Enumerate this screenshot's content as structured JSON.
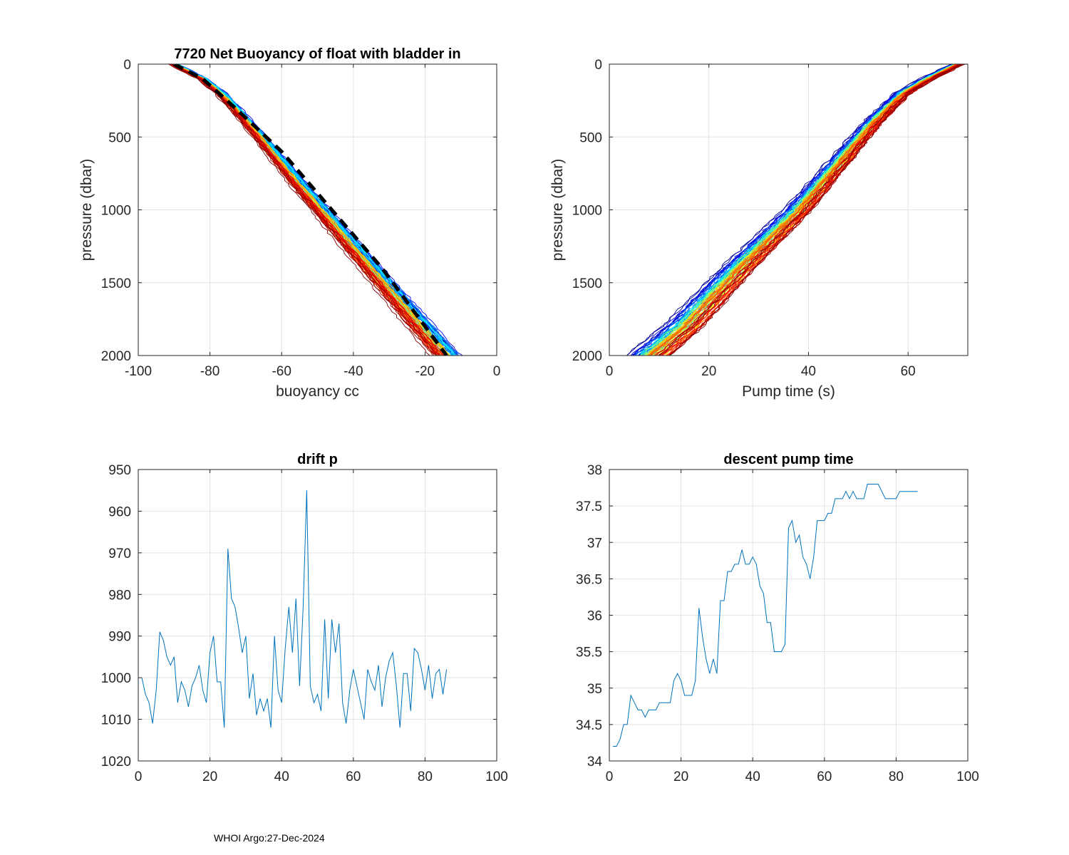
{
  "footer": "WHOI Argo:27-Dec-2024",
  "chart_data": [
    {
      "id": "buoyancy",
      "type": "line",
      "title": "7720 Net Buoyancy of float with bladder in",
      "xlabel": "buoyancy cc",
      "ylabel": "pressure (dbar)",
      "xlim": [
        -100,
        0
      ],
      "ylim": [
        0,
        2000
      ],
      "y_reversed": true,
      "grid": true,
      "xticks": [
        -100,
        -80,
        -60,
        -40,
        -20,
        0
      ],
      "yticks": [
        0,
        500,
        1000,
        1500,
        2000
      ],
      "xtick_labels": [
        "-100",
        "-80",
        "-60",
        "-40",
        "-20",
        "0"
      ],
      "ytick_labels": [
        "0",
        "500",
        "1000",
        "1500",
        "2000"
      ],
      "profile_count": 86,
      "colormap": "jet",
      "profile_template": {
        "p": [
          0,
          100,
          200,
          300,
          500,
          800,
          1200,
          1600,
          2000
        ],
        "x": [
          -90,
          -82,
          -77,
          -73,
          -66,
          -56,
          -42,
          -28,
          -14
        ]
      },
      "reference_line": {
        "name": "mean",
        "style": "dashed-black",
        "p": [
          0,
          100,
          300,
          600,
          1000,
          1400,
          1800,
          2000
        ],
        "x": [
          -90,
          -82,
          -73,
          -60,
          -46,
          -32,
          -20,
          -14
        ]
      }
    },
    {
      "id": "pump",
      "type": "line",
      "title": "",
      "xlabel": "Pump time (s)",
      "ylabel": "pressure (dbar)",
      "xlim": [
        0,
        72
      ],
      "ylim": [
        0,
        2000
      ],
      "y_reversed": true,
      "grid": true,
      "xticks": [
        0,
        20,
        40,
        60
      ],
      "yticks": [
        0,
        500,
        1000,
        1500,
        2000
      ],
      "xtick_labels": [
        "0",
        "20",
        "40",
        "60"
      ],
      "ytick_labels": [
        "0",
        "500",
        "1000",
        "1500",
        "2000"
      ],
      "profile_count": 86,
      "colormap": "jet",
      "profile_template": {
        "p": [
          0,
          100,
          200,
          400,
          800,
          1000,
          1400,
          1800,
          2000
        ],
        "x": [
          70,
          64,
          59,
          53,
          43,
          38,
          26,
          15,
          8
        ]
      }
    },
    {
      "id": "drift",
      "type": "line",
      "title": "drift p",
      "xlabel": "",
      "ylabel": "",
      "xlim": [
        0,
        100
      ],
      "ylim": [
        950,
        1020
      ],
      "y_reversed": true,
      "grid": true,
      "xticks": [
        0,
        20,
        40,
        60,
        80,
        100
      ],
      "yticks": [
        950,
        960,
        970,
        980,
        990,
        1000,
        1010,
        1020
      ],
      "xtick_labels": [
        "0",
        "20",
        "40",
        "60",
        "80",
        "100"
      ],
      "ytick_labels": [
        "950",
        "960",
        "970",
        "980",
        "990",
        "1000",
        "1010",
        "1020"
      ],
      "series": [
        {
          "name": "drift p",
          "x": [
            1,
            2,
            3,
            4,
            5,
            6,
            7,
            8,
            9,
            10,
            11,
            12,
            13,
            14,
            15,
            16,
            17,
            18,
            19,
            20,
            21,
            22,
            23,
            24,
            25,
            26,
            27,
            28,
            29,
            30,
            31,
            32,
            33,
            34,
            35,
            36,
            37,
            38,
            39,
            40,
            41,
            42,
            43,
            44,
            45,
            46,
            47,
            48,
            49,
            50,
            51,
            52,
            53,
            54,
            55,
            56,
            57,
            58,
            59,
            60,
            61,
            62,
            63,
            64,
            65,
            66,
            67,
            68,
            69,
            70,
            71,
            72,
            73,
            74,
            75,
            76,
            77,
            78,
            79,
            80,
            81,
            82,
            83,
            84,
            85,
            86
          ],
          "y": [
            1000,
            1004,
            1006,
            1011,
            1003,
            989,
            991,
            995,
            997,
            995,
            1006,
            1001,
            1003,
            1007,
            1002,
            1000,
            997,
            1003,
            1006,
            994,
            990,
            1001,
            1001,
            1012,
            969,
            981,
            983,
            988,
            994,
            990,
            1005,
            999,
            1009,
            1005,
            1008,
            1005,
            1012,
            990,
            1003,
            1006,
            993,
            983,
            994,
            981,
            1002,
            983,
            955,
            1002,
            1006,
            1004,
            1008,
            986,
            1005,
            986,
            994,
            987,
            1006,
            1011,
            1003,
            998,
            1002,
            1006,
            1010,
            998,
            1001,
            1003,
            997,
            1007,
            1000,
            996,
            994,
            1002,
            1012,
            999,
            999,
            1008,
            993,
            994,
            998,
            1003,
            997,
            1005,
            999,
            998,
            1004,
            998
          ]
        }
      ]
    },
    {
      "id": "descent",
      "type": "line",
      "title": "descent pump time",
      "xlabel": "",
      "ylabel": "",
      "xlim": [
        0,
        100
      ],
      "ylim": [
        34,
        38
      ],
      "y_reversed": false,
      "grid": true,
      "xticks": [
        0,
        20,
        40,
        60,
        80,
        100
      ],
      "yticks": [
        34,
        34.5,
        35,
        35.5,
        36,
        36.5,
        37,
        37.5,
        38
      ],
      "xtick_labels": [
        "0",
        "20",
        "40",
        "60",
        "80",
        "100"
      ],
      "ytick_labels": [
        "34",
        "34.5",
        "35",
        "35.5",
        "36",
        "36.5",
        "37",
        "37.5",
        "38"
      ],
      "series": [
        {
          "name": "descent pump time",
          "x": [
            1,
            2,
            3,
            4,
            5,
            6,
            7,
            8,
            9,
            10,
            11,
            12,
            13,
            14,
            15,
            16,
            17,
            18,
            19,
            20,
            21,
            22,
            23,
            24,
            25,
            26,
            27,
            28,
            29,
            30,
            31,
            32,
            33,
            34,
            35,
            36,
            37,
            38,
            39,
            40,
            41,
            42,
            43,
            44,
            45,
            46,
            47,
            48,
            49,
            50,
            51,
            52,
            53,
            54,
            55,
            56,
            57,
            58,
            59,
            60,
            61,
            62,
            63,
            64,
            65,
            66,
            67,
            68,
            69,
            70,
            71,
            72,
            73,
            74,
            75,
            76,
            77,
            78,
            79,
            80,
            81,
            82,
            83,
            84,
            85,
            86
          ],
          "y": [
            34.2,
            34.2,
            34.3,
            34.5,
            34.5,
            34.9,
            34.8,
            34.7,
            34.7,
            34.6,
            34.7,
            34.7,
            34.7,
            34.8,
            34.8,
            34.8,
            34.8,
            35.1,
            35.2,
            35.1,
            34.9,
            34.9,
            34.9,
            35.1,
            36.1,
            35.7,
            35.4,
            35.2,
            35.4,
            35.2,
            36.2,
            36.2,
            36.6,
            36.6,
            36.7,
            36.7,
            36.9,
            36.7,
            36.7,
            36.8,
            36.7,
            36.4,
            36.3,
            35.9,
            35.9,
            35.5,
            35.5,
            35.5,
            35.6,
            37.2,
            37.3,
            37.0,
            37.1,
            36.8,
            36.7,
            36.5,
            36.8,
            37.3,
            37.3,
            37.3,
            37.4,
            37.4,
            37.6,
            37.6,
            37.6,
            37.7,
            37.6,
            37.7,
            37.6,
            37.6,
            37.6,
            37.8,
            37.8,
            37.8,
            37.8,
            37.7,
            37.6,
            37.6,
            37.6,
            37.6,
            37.7,
            37.7,
            37.7,
            37.7,
            37.7,
            37.7
          ]
        }
      ]
    }
  ]
}
